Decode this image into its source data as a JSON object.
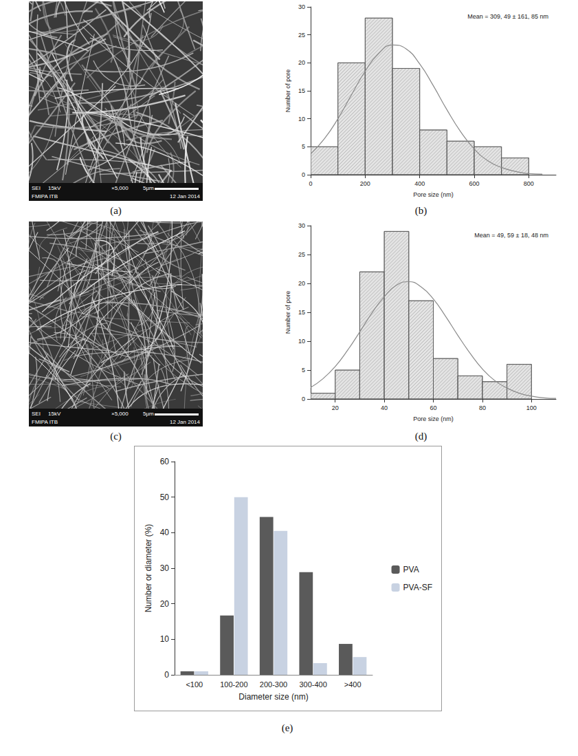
{
  "images": [
    {
      "caption": "(a)",
      "texts": [
        "SEI",
        "15kV",
        "×5,000",
        "5µm",
        "FMIPA ITB",
        "12 Jan 2014"
      ]
    },
    {
      "caption": "(c)",
      "texts": [
        "SEI",
        "15kV",
        "×5,000",
        "5µm",
        "FMIPA ITB",
        "12 Jan 2014"
      ]
    }
  ],
  "chart_data": [
    {
      "type": "histogram",
      "caption": "(b)",
      "annotation": "Mean = 309, 49 ± 161, 85 nm",
      "x_label": "Pore size (nm)",
      "y_label": "Number of pore",
      "bins": [
        0,
        100,
        200,
        300,
        400,
        500,
        600,
        700,
        800
      ],
      "counts": [
        5,
        20,
        28,
        19,
        8,
        6,
        5,
        3
      ],
      "color": "#e4e4e4",
      "curve": {
        "color": "#8a8a8a",
        "x": [
          0,
          50,
          100,
          150,
          200,
          250,
          300,
          350,
          400,
          450,
          500,
          550,
          600,
          650,
          700,
          750,
          800,
          850
        ],
        "values": [
          3.7,
          6.4,
          10.0,
          14.3,
          18.5,
          21.7,
          23.2,
          22.5,
          19.8,
          15.9,
          11.6,
          7.7,
          4.6,
          2.5,
          1.3,
          0.6,
          0.2,
          0.1
        ]
      },
      "xlim": [
        0,
        900
      ],
      "xticks": [
        0,
        200,
        400,
        600,
        800
      ],
      "ylim": [
        0,
        30
      ],
      "yticks": [
        0,
        5,
        10,
        15,
        20,
        25,
        30
      ],
      "grid": false
    },
    {
      "type": "histogram",
      "caption": "(d)",
      "annotation": "Mean = 49, 59 ± 18, 48 nm",
      "x_label": "Pore size (nm)",
      "y_label": "Number of pore",
      "bins": [
        10,
        20,
        30,
        40,
        50,
        60,
        70,
        80,
        90,
        100
      ],
      "counts": [
        1,
        5,
        22,
        29,
        17,
        7,
        4,
        3,
        6
      ],
      "color": "#e4e4e4",
      "curve": {
        "color": "#8a8a8a",
        "x": [
          10,
          15,
          20,
          25,
          30,
          35,
          40,
          45,
          50,
          55,
          60,
          65,
          70,
          75,
          80,
          85,
          90,
          95,
          100,
          105,
          110
        ],
        "values": [
          2.0,
          3.5,
          5.6,
          8.4,
          11.6,
          14.9,
          17.7,
          19.7,
          20.3,
          19.4,
          17.3,
          14.3,
          11.0,
          7.9,
          5.2,
          3.2,
          1.9,
          1.0,
          0.5,
          0.2,
          0.1
        ]
      },
      "xlim": [
        10,
        110
      ],
      "xticks": [
        20,
        40,
        60,
        80,
        100
      ],
      "ylim": [
        0,
        30
      ],
      "yticks": [
        0,
        5,
        10,
        15,
        20,
        25,
        30
      ],
      "grid": false
    },
    {
      "type": "bar",
      "caption": "(e)",
      "x_label": "Diameter size (nm)",
      "y_label": "Number or diameter (%)",
      "categories": [
        "<100",
        "100-200",
        "200-300",
        "300-400",
        ">400"
      ],
      "series": [
        {
          "name": "PVA",
          "color": "#5a5a5a",
          "values": [
            1,
            16.7,
            44.4,
            28.9,
            8.7
          ]
        },
        {
          "name": "PVA-SF",
          "color": "#c8d2e2",
          "values": [
            1,
            50,
            40.5,
            3.3,
            5
          ]
        }
      ],
      "ylim": [
        0,
        60
      ],
      "yticks": [
        0,
        10,
        20,
        30,
        40,
        50,
        60
      ],
      "legend": "right",
      "grid": false
    }
  ]
}
